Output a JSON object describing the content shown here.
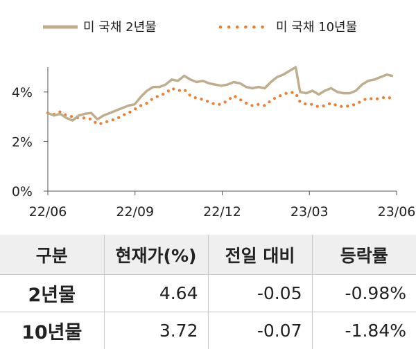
{
  "chart_data": {
    "type": "line",
    "title": "",
    "xlabel": "",
    "ylabel": "",
    "x_ticks": [
      "22/06",
      "22/09",
      "22/12",
      "23/03",
      "23/06"
    ],
    "y_ticks": [
      "0%",
      "2%",
      "4%"
    ],
    "ylim": [
      0,
      5
    ],
    "xlim": [
      "2022-06-01",
      "2023-06-30"
    ],
    "grid": false,
    "legend_position": "top",
    "series": [
      {
        "name": "미 국채 2년물",
        "style": "solid",
        "color": "#bfae8e",
        "points": [
          [
            "2022-06-01",
            3.15
          ],
          [
            "2022-06-08",
            3.05
          ],
          [
            "2022-06-15",
            3.12
          ],
          [
            "2022-06-22",
            2.95
          ],
          [
            "2022-06-29",
            2.85
          ],
          [
            "2022-07-06",
            3.05
          ],
          [
            "2022-07-13",
            3.12
          ],
          [
            "2022-07-20",
            3.15
          ],
          [
            "2022-07-27",
            2.9
          ],
          [
            "2022-08-03",
            3.05
          ],
          [
            "2022-08-10",
            3.15
          ],
          [
            "2022-08-17",
            3.25
          ],
          [
            "2022-08-24",
            3.35
          ],
          [
            "2022-08-31",
            3.45
          ],
          [
            "2022-09-07",
            3.5
          ],
          [
            "2022-09-14",
            3.8
          ],
          [
            "2022-09-21",
            4.05
          ],
          [
            "2022-09-28",
            4.2
          ],
          [
            "2022-10-05",
            4.2
          ],
          [
            "2022-10-12",
            4.3
          ],
          [
            "2022-10-19",
            4.5
          ],
          [
            "2022-10-26",
            4.45
          ],
          [
            "2022-11-02",
            4.65
          ],
          [
            "2022-11-09",
            4.5
          ],
          [
            "2022-11-16",
            4.4
          ],
          [
            "2022-11-23",
            4.45
          ],
          [
            "2022-11-30",
            4.35
          ],
          [
            "2022-12-07",
            4.3
          ],
          [
            "2022-12-14",
            4.25
          ],
          [
            "2022-12-21",
            4.3
          ],
          [
            "2022-12-28",
            4.4
          ],
          [
            "2023-01-04",
            4.35
          ],
          [
            "2023-01-11",
            4.2
          ],
          [
            "2023-01-18",
            4.15
          ],
          [
            "2023-01-25",
            4.2
          ],
          [
            "2023-02-01",
            4.15
          ],
          [
            "2023-02-08",
            4.4
          ],
          [
            "2023-02-15",
            4.6
          ],
          [
            "2023-02-22",
            4.7
          ],
          [
            "2023-03-01",
            4.85
          ],
          [
            "2023-03-08",
            5.0
          ],
          [
            "2023-03-13",
            4.0
          ],
          [
            "2023-03-20",
            3.95
          ],
          [
            "2023-03-27",
            4.05
          ],
          [
            "2023-04-03",
            3.9
          ],
          [
            "2023-04-10",
            4.05
          ],
          [
            "2023-04-17",
            4.15
          ],
          [
            "2023-04-24",
            4.0
          ],
          [
            "2023-05-01",
            3.95
          ],
          [
            "2023-05-08",
            3.95
          ],
          [
            "2023-05-15",
            4.05
          ],
          [
            "2023-05-22",
            4.3
          ],
          [
            "2023-05-29",
            4.45
          ],
          [
            "2023-06-05",
            4.5
          ],
          [
            "2023-06-12",
            4.6
          ],
          [
            "2023-06-19",
            4.7
          ],
          [
            "2023-06-26",
            4.64
          ]
        ]
      },
      {
        "name": "미 국채 10년물",
        "style": "dotted",
        "color": "#ed7d31",
        "points": [
          [
            "2022-06-01",
            3.15
          ],
          [
            "2022-06-08",
            3.1
          ],
          [
            "2022-06-15",
            3.2
          ],
          [
            "2022-06-22",
            3.05
          ],
          [
            "2022-06-29",
            3.0
          ],
          [
            "2022-07-06",
            2.95
          ],
          [
            "2022-07-13",
            2.95
          ],
          [
            "2022-07-20",
            2.9
          ],
          [
            "2022-07-27",
            2.7
          ],
          [
            "2022-08-03",
            2.75
          ],
          [
            "2022-08-10",
            2.85
          ],
          [
            "2022-08-17",
            2.9
          ],
          [
            "2022-08-24",
            3.05
          ],
          [
            "2022-08-31",
            3.15
          ],
          [
            "2022-09-07",
            3.3
          ],
          [
            "2022-09-14",
            3.45
          ],
          [
            "2022-09-21",
            3.55
          ],
          [
            "2022-09-28",
            3.75
          ],
          [
            "2022-10-05",
            3.85
          ],
          [
            "2022-10-12",
            3.95
          ],
          [
            "2022-10-19",
            4.15
          ],
          [
            "2022-10-26",
            4.05
          ],
          [
            "2022-11-02",
            4.1
          ],
          [
            "2022-11-09",
            3.85
          ],
          [
            "2022-11-16",
            3.75
          ],
          [
            "2022-11-23",
            3.7
          ],
          [
            "2022-11-30",
            3.6
          ],
          [
            "2022-12-07",
            3.5
          ],
          [
            "2022-12-14",
            3.5
          ],
          [
            "2022-12-21",
            3.65
          ],
          [
            "2022-12-28",
            3.85
          ],
          [
            "2023-01-04",
            3.7
          ],
          [
            "2023-01-11",
            3.55
          ],
          [
            "2023-01-18",
            3.45
          ],
          [
            "2023-01-25",
            3.5
          ],
          [
            "2023-02-01",
            3.45
          ],
          [
            "2023-02-08",
            3.65
          ],
          [
            "2023-02-15",
            3.8
          ],
          [
            "2023-02-22",
            3.9
          ],
          [
            "2023-03-01",
            4.0
          ],
          [
            "2023-03-08",
            3.95
          ],
          [
            "2023-03-13",
            3.6
          ],
          [
            "2023-03-20",
            3.5
          ],
          [
            "2023-03-27",
            3.5
          ],
          [
            "2023-04-03",
            3.4
          ],
          [
            "2023-04-10",
            3.45
          ],
          [
            "2023-04-17",
            3.55
          ],
          [
            "2023-04-24",
            3.45
          ],
          [
            "2023-05-01",
            3.4
          ],
          [
            "2023-05-08",
            3.45
          ],
          [
            "2023-05-15",
            3.5
          ],
          [
            "2023-05-22",
            3.65
          ],
          [
            "2023-05-29",
            3.75
          ],
          [
            "2023-06-05",
            3.7
          ],
          [
            "2023-06-12",
            3.75
          ],
          [
            "2023-06-19",
            3.8
          ],
          [
            "2023-06-26",
            3.72
          ]
        ]
      }
    ]
  },
  "table": {
    "headers": [
      "구분",
      "현재가(%)",
      "전일 대비",
      "등락률"
    ],
    "rows": [
      [
        "2년물",
        "4.64",
        "-0.05",
        "-0.98%"
      ],
      [
        "10년물",
        "3.72",
        "-0.07",
        "-1.84%"
      ]
    ]
  }
}
